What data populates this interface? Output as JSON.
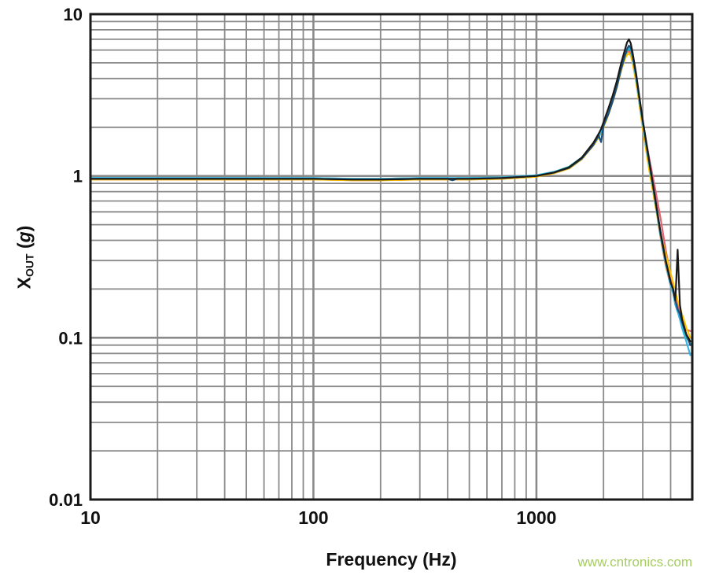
{
  "page": {
    "watermark": "www.cntronics.com",
    "watermark_color": "#a5cd5f"
  },
  "chart_data": {
    "type": "line",
    "title": "",
    "xlabel": "Frequency (Hz)",
    "ylabel": {
      "main": "X",
      "sub": "OUT",
      "pre": " (",
      "g": "g",
      "post": ")"
    },
    "xscale": "log",
    "yscale": "log",
    "xlim": [
      10,
      5000
    ],
    "ylim": [
      0.01,
      10
    ],
    "grid": {
      "minor": true,
      "color": "#8a8a8a"
    },
    "x_ticks": [
      {
        "value": 10,
        "label": "10"
      },
      {
        "value": 100,
        "label": "100"
      },
      {
        "value": 1000,
        "label": "1000"
      }
    ],
    "y_ticks": [
      {
        "value": 10,
        "label": "10"
      },
      {
        "value": 1,
        "label": "1"
      },
      {
        "value": 0.1,
        "label": "0.1"
      },
      {
        "value": 0.01,
        "label": "0.01"
      }
    ],
    "x": [
      10,
      15,
      20,
      30,
      50,
      70,
      100,
      150,
      200,
      300,
      400,
      420,
      440,
      500,
      700,
      1000,
      1200,
      1400,
      1600,
      1800,
      1900,
      1950,
      2000,
      2100,
      2200,
      2300,
      2400,
      2500,
      2550,
      2600,
      2650,
      2700,
      2800,
      2900,
      3000,
      3200,
      3400,
      3600,
      3800,
      4000,
      4100,
      4200,
      4300,
      4400,
      4500,
      4700,
      4900
    ],
    "series": [
      {
        "name": "series-orange",
        "color": "#ED7D31",
        "values": [
          0.95,
          0.95,
          0.95,
          0.95,
          0.95,
          0.95,
          0.95,
          0.94,
          0.94,
          0.95,
          0.95,
          0.95,
          0.95,
          0.95,
          0.96,
          0.99,
          1.04,
          1.12,
          1.3,
          1.6,
          1.8,
          1.92,
          2.1,
          2.5,
          3.0,
          3.7,
          4.7,
          5.5,
          5.8,
          5.9,
          5.7,
          5.2,
          3.9,
          2.8,
          2.0,
          1.15,
          0.7,
          0.42,
          0.28,
          0.21,
          0.19,
          0.16,
          0.145,
          0.135,
          0.12,
          0.1,
          0.095
        ]
      },
      {
        "name": "series-red",
        "color": "#E2636F",
        "values": [
          0.96,
          0.96,
          0.96,
          0.96,
          0.96,
          0.96,
          0.96,
          0.95,
          0.95,
          0.96,
          0.96,
          0.96,
          0.96,
          0.96,
          0.97,
          1.0,
          1.05,
          1.13,
          1.29,
          1.57,
          1.77,
          1.9,
          2.08,
          2.48,
          2.98,
          3.68,
          4.68,
          5.6,
          5.9,
          6.0,
          5.85,
          5.35,
          4.1,
          2.95,
          2.15,
          1.3,
          0.85,
          0.55,
          0.35,
          0.24,
          0.21,
          0.18,
          0.16,
          0.148,
          0.132,
          0.112,
          0.11
        ]
      },
      {
        "name": "series-yellow",
        "color": "#FFC000",
        "values": [
          0.95,
          0.95,
          0.95,
          0.95,
          0.95,
          0.95,
          0.95,
          0.94,
          0.94,
          0.95,
          0.95,
          0.95,
          0.95,
          0.95,
          0.96,
          0.99,
          1.04,
          1.11,
          1.27,
          1.54,
          1.72,
          1.84,
          2.0,
          2.38,
          2.88,
          3.55,
          4.5,
          5.35,
          5.6,
          5.7,
          5.55,
          5.05,
          3.8,
          2.75,
          1.95,
          1.1,
          0.68,
          0.44,
          0.33,
          0.25,
          0.22,
          0.19,
          0.17,
          0.155,
          0.14,
          0.115,
          0.1
        ]
      },
      {
        "name": "series-teal",
        "color": "#00A693",
        "values": [
          0.97,
          0.97,
          0.97,
          0.97,
          0.97,
          0.97,
          0.97,
          0.96,
          0.96,
          0.97,
          0.97,
          0.96,
          0.97,
          0.97,
          0.98,
          1.01,
          1.06,
          1.14,
          1.3,
          1.58,
          1.76,
          1.88,
          2.05,
          2.45,
          2.95,
          3.65,
          4.65,
          5.55,
          5.95,
          6.1,
          5.95,
          5.4,
          4.05,
          2.9,
          2.1,
          1.2,
          0.72,
          0.43,
          0.29,
          0.215,
          0.195,
          0.165,
          0.15,
          0.138,
          0.122,
          0.102,
          0.092
        ]
      },
      {
        "name": "series-cyan",
        "color": "#35B5E5",
        "values": [
          0.97,
          0.97,
          0.97,
          0.97,
          0.97,
          0.97,
          0.97,
          0.96,
          0.96,
          0.97,
          0.97,
          0.97,
          0.97,
          0.97,
          0.98,
          1.01,
          1.06,
          1.13,
          1.29,
          1.56,
          1.75,
          1.87,
          2.03,
          2.43,
          2.93,
          3.62,
          4.62,
          5.58,
          6.0,
          6.2,
          6.0,
          5.45,
          4.1,
          2.92,
          2.12,
          1.22,
          0.73,
          0.44,
          0.29,
          0.21,
          0.19,
          0.16,
          0.145,
          0.13,
          0.115,
          0.095,
          0.078
        ]
      },
      {
        "name": "series-navy",
        "color": "#1F4E79",
        "values": [
          0.96,
          0.96,
          0.96,
          0.96,
          0.96,
          0.96,
          0.96,
          0.95,
          0.95,
          0.96,
          0.96,
          0.94,
          0.96,
          0.96,
          0.97,
          1.0,
          1.05,
          1.12,
          1.28,
          1.55,
          1.78,
          1.62,
          2.05,
          2.4,
          2.9,
          3.6,
          4.6,
          5.6,
          6.1,
          6.4,
          6.2,
          5.6,
          4.2,
          3.0,
          2.2,
          1.25,
          0.75,
          0.45,
          0.3,
          0.22,
          0.2,
          0.17,
          0.15,
          0.14,
          0.125,
          0.105,
          0.09
        ]
      },
      {
        "name": "series-black",
        "color": "#1A1A1A",
        "values": [
          0.96,
          0.96,
          0.96,
          0.96,
          0.96,
          0.96,
          0.96,
          0.95,
          0.95,
          0.96,
          0.96,
          0.96,
          0.96,
          0.96,
          0.97,
          1.0,
          1.05,
          1.13,
          1.3,
          1.6,
          1.82,
          1.95,
          2.15,
          2.6,
          3.15,
          3.9,
          5.0,
          6.1,
          6.7,
          7.0,
          6.6,
          5.8,
          4.3,
          3.05,
          2.2,
          1.25,
          0.74,
          0.45,
          0.3,
          0.22,
          0.2,
          0.17,
          0.35,
          0.16,
          0.13,
          0.105,
          0.095
        ]
      }
    ]
  }
}
